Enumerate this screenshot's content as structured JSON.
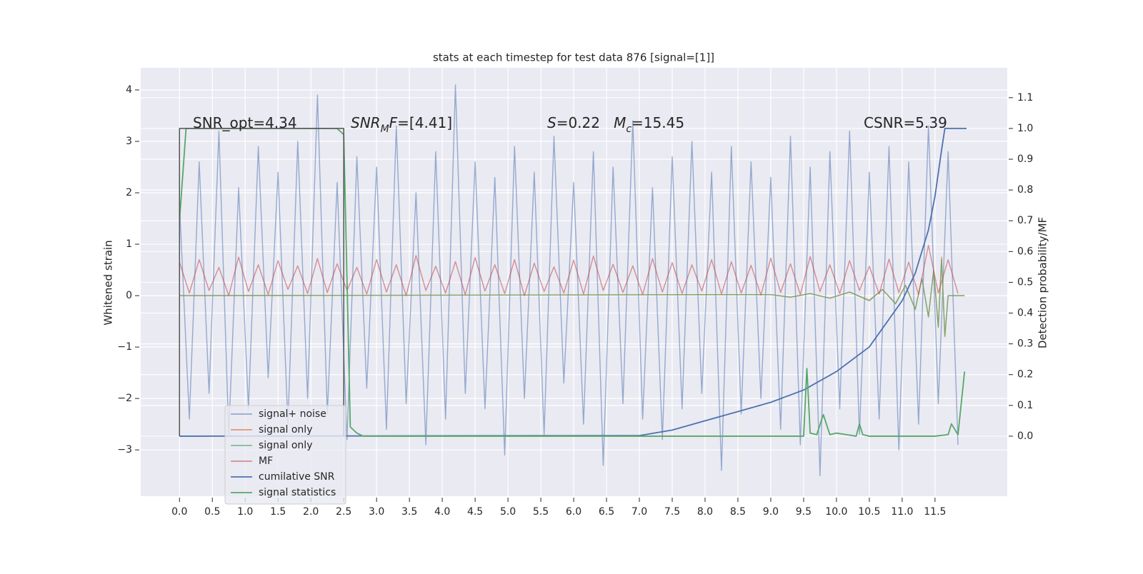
{
  "chart_data": {
    "type": "line",
    "title": "stats at each timestep for test data 876 [signal=[1]]",
    "ylabel": "Whitened strain",
    "y2label": "Detection probability/MF",
    "xlim": [
      -0.59,
      12.6
    ],
    "ylim": [
      -3.9,
      4.43
    ],
    "y2lim": [
      -0.195,
      1.197
    ],
    "xticks": [
      {
        "value": 0,
        "label": "0.0"
      },
      0.5,
      {
        "value": 1,
        "label": "1.0"
      },
      1.5,
      {
        "value": 2,
        "label": "2.0"
      },
      2.5,
      {
        "value": 3,
        "label": "3.0"
      },
      3.5,
      {
        "value": 4,
        "label": "4.0"
      },
      4.5,
      {
        "value": 5,
        "label": "5.0"
      },
      5.5,
      {
        "value": 6,
        "label": "6.0"
      },
      6.5,
      {
        "value": 7,
        "label": "7.0"
      },
      7.5,
      {
        "value": 8,
        "label": "8.0"
      },
      8.5,
      {
        "value": 9,
        "label": "9.0"
      },
      9.5,
      {
        "value": 10,
        "label": "10.0"
      },
      10.5,
      {
        "value": 11,
        "label": "11.0"
      },
      11.5
    ],
    "yticks": [
      {
        "value": -3,
        "label": "−3"
      },
      {
        "value": -2,
        "label": "−2"
      },
      {
        "value": -1,
        "label": "−1"
      },
      0,
      1,
      2,
      3,
      4
    ],
    "y2ticks": [
      {
        "value": 0,
        "label": "0.0"
      },
      0.1,
      0.2,
      0.3,
      0.4,
      0.5,
      0.6,
      0.7,
      0.8,
      0.9,
      {
        "value": 1,
        "label": "1.0"
      },
      1.1
    ],
    "grid": true,
    "legend": "lower left",
    "annotations": [
      {
        "parts": [
          {
            "text": "SNR_opt=4.34"
          }
        ]
      },
      {
        "parts": [
          {
            "text": "SNR",
            "italic": true
          },
          {
            "text": "M",
            "italic": true,
            "sub": true
          },
          {
            "text": "F",
            "italic": true
          },
          {
            "text": "=[4.41]"
          }
        ]
      },
      {
        "parts": [
          {
            "text": "S",
            "italic": true
          },
          {
            "text": "=0.22   "
          },
          {
            "text": "M",
            "italic": true
          },
          {
            "text": "c",
            "italic": true,
            "sub": true
          },
          {
            "text": "=15.45"
          }
        ]
      },
      {
        "parts": [
          {
            "text": "CSNR=5.39"
          }
        ]
      }
    ],
    "window": {
      "x": [
        0,
        0,
        2.5,
        2.5
      ],
      "values": [
        0,
        1,
        1,
        0
      ],
      "color": "#555555",
      "axis": "y2"
    },
    "series": [
      {
        "name": "signal+ noise",
        "color": "#4c72b0",
        "opacity": 0.55,
        "x": [
          0,
          0.15,
          0.3,
          0.45,
          0.6,
          0.75,
          0.9,
          1.05,
          1.2,
          1.35,
          1.5,
          1.65,
          1.8,
          1.95,
          2.1,
          2.25,
          2.4,
          2.55,
          2.7,
          2.85,
          3,
          3.15,
          3.3,
          3.45,
          3.6,
          3.75,
          3.9,
          4.05,
          4.2,
          4.35,
          4.5,
          4.65,
          4.8,
          4.95,
          5.1,
          5.25,
          5.4,
          5.55,
          5.7,
          5.85,
          6,
          6.15,
          6.3,
          6.45,
          6.6,
          6.75,
          6.9,
          7.05,
          7.2,
          7.35,
          7.5,
          7.65,
          7.8,
          7.95,
          8.1,
          8.25,
          8.4,
          8.55,
          8.7,
          8.85,
          9,
          9.15,
          9.3,
          9.45,
          9.6,
          9.75,
          9.9,
          10.05,
          10.2,
          10.35,
          10.5,
          10.65,
          10.8,
          10.95,
          11.1,
          11.25,
          11.4,
          11.55,
          11.7,
          11.85
        ],
        "values": [
          1.8,
          -2.4,
          2.6,
          -1.9,
          3.2,
          -2.7,
          2.1,
          -2.2,
          2.9,
          -1.6,
          2.4,
          -2.5,
          3.0,
          -2.0,
          3.9,
          -2.3,
          2.2,
          -2.8,
          2.7,
          -1.8,
          2.5,
          -2.6,
          3.3,
          -2.1,
          2.0,
          -2.9,
          2.8,
          -2.4,
          4.1,
          -1.9,
          2.6,
          -2.2,
          2.3,
          -3.1,
          2.9,
          -2.0,
          2.4,
          -2.7,
          3.1,
          -1.7,
          2.2,
          -2.5,
          2.8,
          -3.3,
          2.5,
          -2.1,
          3.4,
          -2.4,
          2.1,
          -2.8,
          2.7,
          -2.2,
          3.0,
          -1.9,
          2.4,
          -3.4,
          2.9,
          -2.3,
          2.6,
          -2.0,
          2.3,
          -2.6,
          3.1,
          -2.9,
          2.5,
          -3.5,
          2.8,
          -2.2,
          3.2,
          -2.7,
          2.4,
          -2.4,
          2.9,
          -3.0,
          2.6,
          -2.5,
          3.3,
          -2.1,
          2.8,
          -2.9
        ]
      },
      {
        "name": "signal only",
        "color": "#dd8452",
        "opacity": 0.8,
        "x": [
          0,
          9,
          9.3,
          9.6,
          9.9,
          10.2,
          10.5,
          10.7,
          10.9,
          11.05,
          11.2,
          11.3,
          11.4,
          11.48,
          11.55,
          11.6,
          11.65,
          11.7,
          11.95
        ],
        "values": [
          0,
          0.02,
          -0.03,
          0.04,
          -0.05,
          0.07,
          -0.09,
          0.12,
          -0.15,
          0.2,
          -0.26,
          0.33,
          -0.4,
          0.5,
          -0.6,
          0.75,
          -0.8,
          0,
          0
        ]
      },
      {
        "name": "signal only",
        "color": "#55a868",
        "opacity": 0.7,
        "x": [
          0,
          9,
          9.3,
          9.6,
          9.9,
          10.2,
          10.5,
          10.7,
          10.9,
          11.05,
          11.2,
          11.3,
          11.4,
          11.48,
          11.55,
          11.6,
          11.65,
          11.7,
          11.95
        ],
        "values": [
          0,
          0.02,
          -0.03,
          0.04,
          -0.05,
          0.07,
          -0.1,
          0.12,
          -0.16,
          0.2,
          -0.27,
          0.34,
          -0.42,
          0.5,
          -0.62,
          0.7,
          -0.78,
          0,
          0
        ]
      },
      {
        "name": "MF",
        "color": "#c44e52",
        "opacity": 0.6,
        "x": [
          0,
          0.15,
          0.3,
          0.45,
          0.6,
          0.75,
          0.9,
          1.05,
          1.2,
          1.35,
          1.5,
          1.65,
          1.8,
          1.95,
          2.1,
          2.25,
          2.4,
          2.55,
          2.7,
          2.85,
          3,
          3.15,
          3.3,
          3.45,
          3.6,
          3.75,
          3.9,
          4.05,
          4.2,
          4.35,
          4.5,
          4.65,
          4.8,
          4.95,
          5.1,
          5.25,
          5.4,
          5.55,
          5.7,
          5.85,
          6,
          6.15,
          6.3,
          6.45,
          6.6,
          6.75,
          6.9,
          7.05,
          7.2,
          7.35,
          7.5,
          7.65,
          7.8,
          7.95,
          8.1,
          8.25,
          8.4,
          8.55,
          8.7,
          8.85,
          9,
          9.15,
          9.3,
          9.45,
          9.6,
          9.75,
          9.9,
          10.05,
          10.2,
          10.35,
          10.5,
          10.65,
          10.8,
          10.95,
          11.1,
          11.25,
          11.4,
          11.55,
          11.7,
          11.85
        ],
        "values": [
          0.65,
          0.05,
          0.7,
          0.1,
          0.55,
          0.0,
          0.75,
          0.08,
          0.6,
          0.02,
          0.68,
          0.12,
          0.58,
          0.04,
          0.72,
          0.06,
          0.62,
          0.1,
          0.55,
          0.03,
          0.7,
          0.07,
          0.6,
          0.0,
          0.78,
          0.1,
          0.57,
          0.05,
          0.66,
          0.02,
          0.74,
          0.09,
          0.6,
          0.04,
          0.7,
          0.0,
          0.63,
          0.08,
          0.56,
          0.05,
          0.69,
          0.03,
          0.77,
          0.1,
          0.61,
          0.06,
          0.58,
          0.02,
          0.72,
          0.07,
          0.64,
          0.04,
          0.6,
          0.09,
          0.7,
          0.03,
          0.66,
          0.05,
          0.59,
          0.01,
          0.73,
          0.06,
          0.62,
          0.02,
          0.76,
          0.08,
          0.6,
          0.04,
          0.68,
          0.1,
          0.57,
          0.03,
          0.71,
          0.06,
          0.65,
          0.02,
          0.98,
          0.05,
          0.7,
          0.04
        ]
      },
      {
        "name": "cumilative SNR",
        "color": "#4c72b0",
        "opacity": 1,
        "axis": "y2",
        "x": [
          0,
          7,
          7.5,
          8,
          8.5,
          9,
          9.5,
          10,
          10.5,
          11,
          11.2,
          11.4,
          11.5,
          11.6,
          11.65,
          11.98
        ],
        "values": [
          0,
          0.002,
          0.02,
          0.05,
          0.08,
          0.11,
          0.15,
          0.21,
          0.29,
          0.44,
          0.53,
          0.67,
          0.78,
          0.93,
          1,
          1
        ]
      },
      {
        "name": "signal statistics",
        "color": "#55a868",
        "opacity": 1,
        "axis": "y2",
        "x": [
          0,
          0.1,
          2.4,
          2.5,
          2.6,
          2.7,
          2.8,
          3,
          9.5,
          9.55,
          9.6,
          9.7,
          9.8,
          9.9,
          10,
          10.3,
          10.35,
          10.4,
          10.5,
          11.5,
          11.7,
          11.75,
          11.85,
          11.95
        ],
        "values": [
          0.7,
          1,
          1,
          0.98,
          0.03,
          0.01,
          0,
          0,
          0,
          0.22,
          0.01,
          0.005,
          0.07,
          0.005,
          0.01,
          0,
          0.04,
          0.005,
          0,
          0,
          0.005,
          0.04,
          0.005,
          0.21
        ]
      }
    ]
  }
}
